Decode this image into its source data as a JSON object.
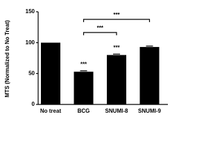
{
  "chart_data": {
    "type": "bar",
    "y_label": "MTS (Normalized to No Treat)",
    "categories": [
      "No treat",
      "BCG",
      "SNUMI-8",
      "SNUMI-9"
    ],
    "values": [
      100,
      53,
      80,
      93
    ],
    "errors": [
      0,
      1.5,
      1.5,
      1.5
    ],
    "value_annotations": [
      null,
      "***",
      "***",
      null
    ],
    "comparisons": [
      {
        "from": "BCG",
        "to": "SNUMI-8",
        "label": "***"
      },
      {
        "from": "BCG",
        "to": "SNUMI-9",
        "label": "***"
      }
    ],
    "color": "#000000",
    "ylim": [
      0,
      150
    ],
    "yticks": [
      0,
      50,
      100,
      150
    ],
    "grid": false
  }
}
